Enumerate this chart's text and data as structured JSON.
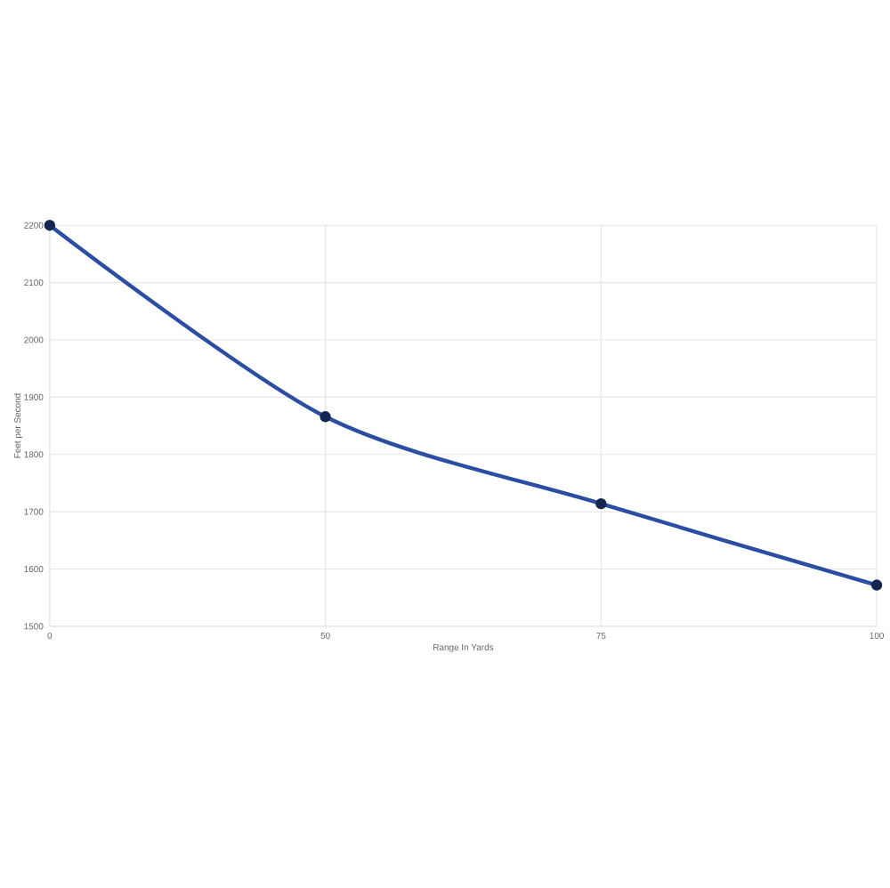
{
  "chart_data": {
    "type": "line",
    "xlabel": "Range In Yards",
    "ylabel": "Feet per Second",
    "categories": [
      "0",
      "50",
      "75",
      "100"
    ],
    "series": [
      {
        "color": "#2b4ea2",
        "values": [
          2200,
          1866,
          1714,
          1572
        ]
      }
    ],
    "ylim": [
      1500,
      2200
    ],
    "yticks": [
      1500,
      1600,
      1700,
      1800,
      1900,
      2000,
      2100,
      2200
    ],
    "grid": true,
    "marker": "circle",
    "line_style": "solid"
  }
}
